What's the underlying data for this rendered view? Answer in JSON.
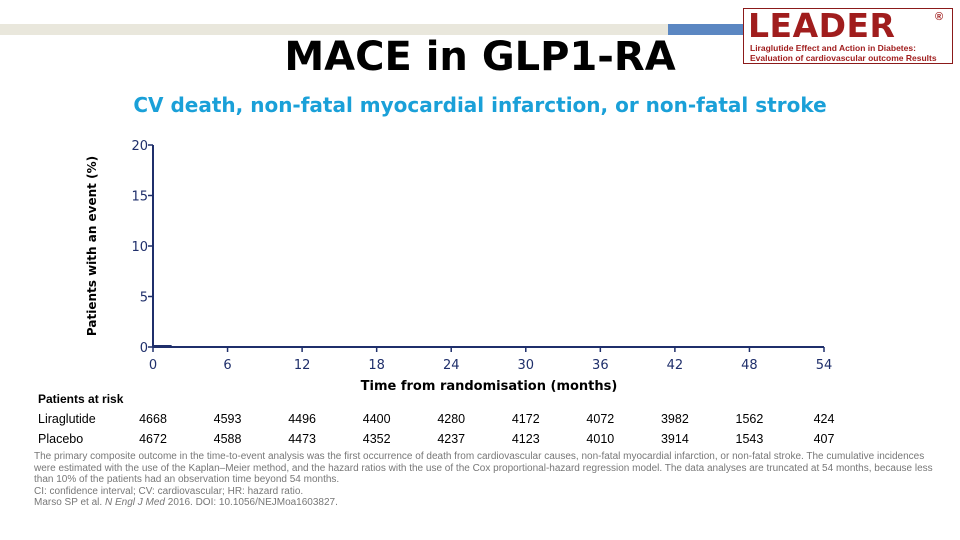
{
  "slide": {
    "title": "MACE in GLP1-RA",
    "subtitle": "CV death, non-fatal myocardial infarction, or non-fatal stroke"
  },
  "logo": {
    "word": "LEADER",
    "registered": "®",
    "line1": "Liraglutide Effect and Action in Diabetes:",
    "line2": "Evaluation of cardiovascular outcome Results"
  },
  "colors": {
    "title": "#000000",
    "subtitle": "#1aa0d8",
    "axis": "#1f2f6b",
    "logo": "#a01d1d",
    "topbar_gray": "#e9e7dc",
    "topbar_blue": "#5b87c2"
  },
  "chart_data": {
    "type": "line",
    "title": "",
    "xlabel": "Time from randomisation (months)",
    "ylabel": "Patients with an event (%)",
    "xlim": [
      0,
      54
    ],
    "ylim": [
      0,
      20
    ],
    "x_ticks": [
      0,
      6,
      12,
      18,
      24,
      30,
      36,
      42,
      48,
      54
    ],
    "y_ticks": [
      0,
      5,
      10,
      15,
      20
    ],
    "grid": false,
    "series": [
      {
        "x": [
          0,
          1.5
        ],
        "y": [
          0.1,
          0.1
        ],
        "color": "#1f2f6b"
      }
    ]
  },
  "risk_table": {
    "heading": "Patients at risk",
    "rows": [
      {
        "label": "Liraglutide",
        "values": [
          "4668",
          "4593",
          "4496",
          "4400",
          "4280",
          "4172",
          "4072",
          "3982",
          "1562",
          "424"
        ]
      },
      {
        "label": "Placebo",
        "values": [
          "4672",
          "4588",
          "4473",
          "4352",
          "4237",
          "4123",
          "4010",
          "3914",
          "1543",
          "407"
        ]
      }
    ]
  },
  "footnote": {
    "line1": "The primary composite outcome in the time-to-event analysis was the first occurrence of death from cardiovascular causes, non-fatal myocardial infarction, or non-fatal stroke. The cumulative incidences were estimated with the use of the Kaplan–Meier method, and the hazard ratios with the use of the Cox proportional-hazard regression model. The data analyses are truncated at 54 months, because less than 10% of the patients had an observation time beyond 54 months.",
    "line2": "CI: confidence interval; CV: cardiovascular; HR: hazard ratio.",
    "ref_authors": "Marso SP et al. ",
    "ref_journal": "N Engl J Med",
    "ref_rest": " 2016. DOI: 10.1056/NEJMoa1603827."
  }
}
